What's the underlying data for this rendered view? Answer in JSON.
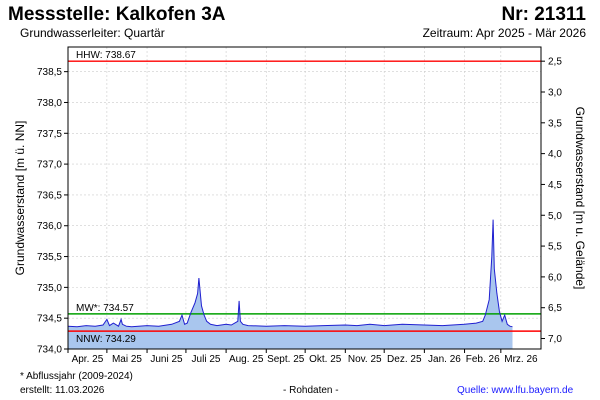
{
  "header": {
    "title": "Messstelle: Kalkofen 3A",
    "station_number": "Nr: 21311",
    "subtitle": "Grundwasserleiter: Quartär",
    "period": "Zeitraum: Apr 2025 - Mär 2026"
  },
  "footer": {
    "footnote": "* Abflussjahr (2009-2024)",
    "created": "erstellt:  11.03.2026",
    "data_type": "- Rohdaten -",
    "source": "Quelle:  www.lfu.bayern.de"
  },
  "colors": {
    "line": "#2020d0",
    "fill": "#a9c6ee",
    "hhw": "#ff0000",
    "nnw": "#ff0000",
    "mw": "#00a000",
    "grid": "#cccccc"
  },
  "chart_data": {
    "type": "area",
    "ylabel": "Grundwasserstand [m ü. NN]",
    "y2label": "Grundwasserstand [m u. Gelände]",
    "ylim": [
      734.0,
      738.9
    ],
    "yticks": [
      734.0,
      734.5,
      735.0,
      735.5,
      736.0,
      736.5,
      737.0,
      737.5,
      738.0,
      738.5
    ],
    "ytick_labels": [
      "734,0",
      "734,5",
      "735,0",
      "735,5",
      "736,0",
      "736,5",
      "737,0",
      "737,5",
      "738,0",
      "738,5"
    ],
    "y2ticks": [
      2.5,
      3.0,
      3.5,
      4.0,
      4.5,
      5.0,
      5.5,
      6.0,
      6.5,
      7.0
    ],
    "y2tick_labels": [
      "2,5",
      "3,0",
      "3,5",
      "4,0",
      "4,5",
      "5,0",
      "5,5",
      "6,0",
      "6,5",
      "7,0"
    ],
    "y2_ground_level": 741.17,
    "xlim": [
      "2025-04-01",
      "2026-04-01"
    ],
    "xtick_labels": [
      "Apr. 25",
      "Mai 25",
      "Juni 25",
      "Juli 25",
      "Aug. 25",
      "Sept. 25",
      "Okt. 25",
      "Nov. 25",
      "Dez. 25",
      "Jan. 26",
      "Feb. 26",
      "Mrz. 26"
    ],
    "xtick_dates": [
      "2025-04-01",
      "2025-05-01",
      "2025-06-01",
      "2025-07-01",
      "2025-08-01",
      "2025-09-01",
      "2025-10-01",
      "2025-11-01",
      "2025-12-01",
      "2026-01-01",
      "2026-02-01",
      "2026-03-01"
    ],
    "grid": true,
    "reference_lines": [
      {
        "label": "HHW: 738.67",
        "value": 738.67,
        "color": "#ff0000"
      },
      {
        "label": "MW*: 734.57",
        "value": 734.57,
        "color": "#00a000"
      },
      {
        "label": "NNW: 734.29",
        "value": 734.29,
        "color": "#ff0000"
      }
    ],
    "series": [
      {
        "x": [
          "2025-04-01",
          "2025-04-08",
          "2025-04-15",
          "2025-04-22",
          "2025-04-28",
          "2025-05-01",
          "2025-05-03",
          "2025-05-06",
          "2025-05-10",
          "2025-05-12",
          "2025-05-13",
          "2025-05-16",
          "2025-05-20",
          "2025-06-01",
          "2025-06-10",
          "2025-06-20",
          "2025-06-26",
          "2025-06-28",
          "2025-06-30",
          "2025-07-02",
          "2025-07-05",
          "2025-07-08",
          "2025-07-10",
          "2025-07-11",
          "2025-07-13",
          "2025-07-15",
          "2025-07-17",
          "2025-07-20",
          "2025-07-25",
          "2025-08-01",
          "2025-08-05",
          "2025-08-10",
          "2025-08-11",
          "2025-08-12",
          "2025-08-14",
          "2025-08-18",
          "2025-09-01",
          "2025-09-15",
          "2025-10-01",
          "2025-10-15",
          "2025-11-01",
          "2025-11-10",
          "2025-11-20",
          "2025-12-01",
          "2025-12-15",
          "2026-01-01",
          "2026-01-15",
          "2026-02-01",
          "2026-02-10",
          "2026-02-15",
          "2026-02-17",
          "2026-02-20",
          "2026-02-22",
          "2026-02-23",
          "2026-02-24",
          "2026-02-26",
          "2026-02-28",
          "2026-03-02",
          "2026-03-04",
          "2026-03-06",
          "2026-03-08",
          "2026-03-10"
        ],
        "values": [
          734.37,
          734.36,
          734.38,
          734.37,
          734.39,
          734.48,
          734.38,
          734.42,
          734.37,
          734.48,
          734.4,
          734.37,
          734.36,
          734.38,
          734.37,
          734.4,
          734.45,
          734.55,
          734.4,
          734.42,
          734.6,
          734.75,
          734.9,
          735.15,
          734.7,
          734.55,
          734.45,
          734.4,
          734.38,
          734.4,
          734.39,
          734.45,
          734.78,
          734.45,
          734.4,
          734.38,
          734.37,
          734.38,
          734.37,
          734.38,
          734.39,
          734.38,
          734.4,
          734.38,
          734.4,
          734.39,
          734.38,
          734.4,
          734.42,
          734.45,
          734.55,
          734.8,
          735.5,
          736.1,
          735.3,
          734.9,
          734.6,
          734.45,
          734.55,
          734.4,
          734.37,
          734.36
        ]
      }
    ]
  }
}
